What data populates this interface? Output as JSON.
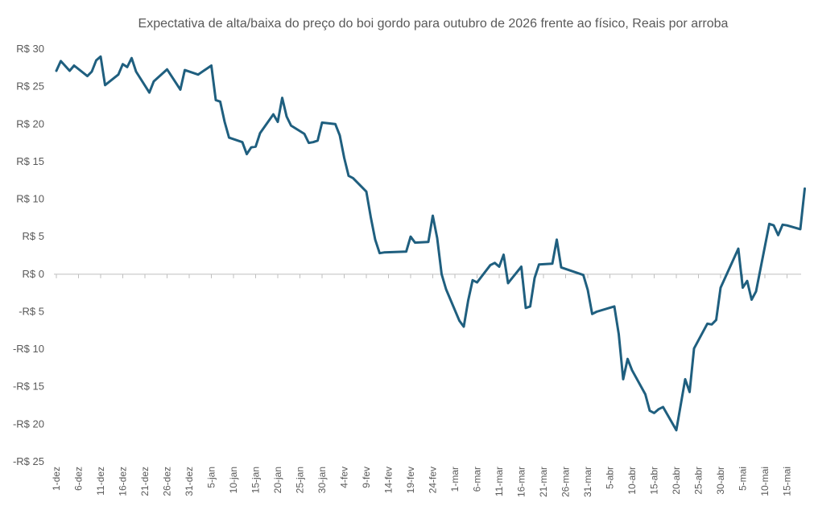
{
  "chart_data": {
    "type": "line",
    "title": "Expectativa de alta/baixa do preço do boi gordo para outubro de 2026 frente ao físico, Reais por arroba",
    "xlabel": "",
    "ylabel": "",
    "ylim": [
      -25,
      30
    ],
    "y_ticks": [
      30,
      25,
      20,
      15,
      10,
      5,
      0,
      -5,
      -10,
      -15,
      -20,
      -25
    ],
    "y_tick_labels": [
      "R$ 30",
      "R$ 25",
      "R$ 20",
      "R$ 15",
      "R$ 10",
      "R$ 5",
      "R$ 0",
      "-R$ 5",
      "-R$ 10",
      "-R$ 15",
      "-R$ 20",
      "-R$ 25"
    ],
    "x_tick_labels": [
      "1-dez",
      "6-dez",
      "11-dez",
      "16-dez",
      "21-dez",
      "26-dez",
      "31-dez",
      "5-jan",
      "10-jan",
      "15-jan",
      "20-jan",
      "25-jan",
      "30-jan",
      "4-fev",
      "9-fev",
      "14-fev",
      "19-fev",
      "24-fev",
      "1-mar",
      "6-mar",
      "11-mar",
      "16-mar",
      "21-mar",
      "26-mar",
      "31-mar",
      "5-abr",
      "10-abr",
      "15-abr",
      "20-abr",
      "25-abr",
      "30-abr",
      "5-mai",
      "10-mai",
      "15-mai"
    ],
    "grid": false,
    "line_color": "#1f5f7f",
    "series": [
      {
        "x": [
          "1-dez",
          "2-dez",
          "4-dez",
          "5-dez",
          "8-dez",
          "9-dez",
          "10-dez",
          "11-dez",
          "12-dez",
          "15-dez",
          "16-dez",
          "17-dez",
          "18-dez",
          "19-dez",
          "22-dez",
          "23-dez",
          "26-dez",
          "29-dez",
          "30-dez",
          "2-jan",
          "5-jan",
          "6-jan",
          "7-jan",
          "8-jan",
          "9-jan",
          "12-jan",
          "13-jan",
          "14-jan",
          "15-jan",
          "16-jan",
          "19-jan",
          "20-jan",
          "21-jan",
          "22-jan",
          "23-jan",
          "26-jan",
          "27-jan",
          "28-jan",
          "29-jan",
          "30-jan",
          "2-fev",
          "3-fev",
          "4-fev",
          "5-fev",
          "6-fev",
          "9-fev",
          "10-fev",
          "11-fev",
          "12-fev",
          "13-fev",
          "18-fev",
          "19-fev",
          "20-fev",
          "23-fev",
          "24-fev",
          "25-fev",
          "26-fev",
          "27-fev",
          "2-mar",
          "3-mar",
          "4-mar",
          "5-mar",
          "6-mar",
          "9-mar",
          "10-mar",
          "11-mar",
          "12-mar",
          "13-mar",
          "16-mar",
          "17-mar",
          "18-mar",
          "19-mar",
          "20-mar",
          "23-mar",
          "24-mar",
          "25-mar",
          "26-mar",
          "27-mar",
          "30-mar",
          "31-mar",
          "1-abr",
          "2-abr",
          "6-abr",
          "7-abr",
          "8-abr",
          "9-abr",
          "10-abr",
          "13-abr",
          "14-abr",
          "15-abr",
          "16-abr",
          "17-abr",
          "20-abr",
          "22-abr",
          "23-abr",
          "24-abr",
          "27-abr",
          "28-abr",
          "29-abr",
          "30-abr",
          "4-mai",
          "5-mai",
          "6-mai",
          "7-mai",
          "8-mai",
          "11-mai",
          "12-mai",
          "13-mai",
          "14-mai",
          "15-mai",
          "18-mai",
          "19-mai"
        ],
        "values": [
          27.1,
          28.4,
          27.1,
          27.8,
          26.4,
          27.0,
          28.5,
          29.0,
          25.2,
          26.6,
          28.0,
          27.6,
          28.8,
          27.0,
          24.2,
          25.7,
          27.3,
          24.6,
          27.2,
          26.6,
          27.8,
          23.2,
          23.0,
          20.3,
          18.2,
          17.6,
          16.0,
          16.9,
          17.0,
          18.8,
          21.3,
          20.3,
          23.5,
          21.0,
          19.8,
          18.7,
          17.5,
          17.6,
          17.8,
          20.2,
          20.0,
          18.5,
          15.5,
          13.1,
          12.8,
          11.0,
          7.6,
          4.6,
          2.8,
          2.9,
          3.0,
          5.0,
          4.2,
          4.3,
          7.8,
          4.8,
          0.0,
          -2.0,
          -6.2,
          -7.0,
          -3.5,
          -0.8,
          -1.1,
          1.2,
          1.5,
          1.0,
          2.6,
          -1.2,
          1.0,
          -4.5,
          -4.3,
          -0.5,
          1.3,
          1.4,
          4.6,
          0.9,
          0.7,
          0.5,
          -0.1,
          -2.1,
          -5.3,
          -5.0,
          -4.3,
          -8.0,
          -14.0,
          -11.3,
          -12.8,
          -16.0,
          -18.2,
          -18.5,
          -18.0,
          -17.7,
          -20.8,
          -14.0,
          -15.7,
          -9.9,
          -6.6,
          -6.7,
          -6.1,
          -1.8,
          3.4,
          -1.8,
          -0.9,
          -3.4,
          -2.3,
          6.7,
          6.5,
          5.2,
          6.6,
          6.5,
          6.0,
          11.4
        ]
      }
    ]
  }
}
